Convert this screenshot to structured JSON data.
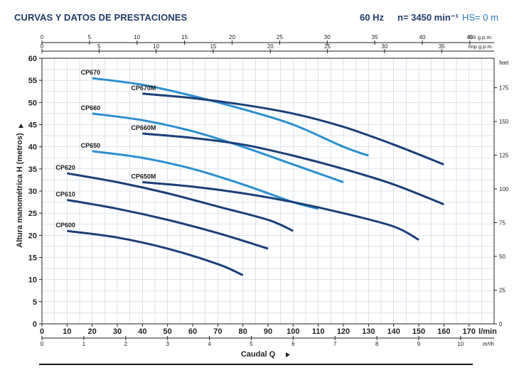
{
  "header": {
    "title": "CURVAS Y DATOS DE PRESTACIONES",
    "frequency": "60 Hz",
    "speed": "n= 3450 min⁻¹",
    "suction": "HS= 0 m"
  },
  "colors": {
    "dark_curve": "#1b3f78",
    "light_curve": "#2b8fd0",
    "grid": "#c9d3df",
    "axis": "#222222"
  },
  "chart_data": {
    "type": "line",
    "xlabel": "Caudal Q",
    "ylabel": "Altura manométrica H (metros)",
    "xlim": [
      0,
      180
    ],
    "ylim": [
      0,
      60
    ],
    "grid": true,
    "x_unit_label": "l/min",
    "y_right_unit_label": "feet",
    "top_axis_1_unit": "US g.p.m.",
    "top_axis_2_unit": "Imp g.p.m.",
    "bottom_axis_2_unit": "m³/h",
    "x_ticks": [
      0,
      10,
      20,
      30,
      40,
      50,
      60,
      70,
      80,
      90,
      100,
      110,
      120,
      130,
      140,
      150,
      160,
      170
    ],
    "y_ticks": [
      0,
      5,
      10,
      15,
      20,
      25,
      30,
      35,
      40,
      45,
      50,
      55,
      60
    ],
    "feet_ticks": [
      0,
      25,
      50,
      75,
      100,
      125,
      150,
      175
    ],
    "us_gpm_ticks": [
      0,
      5,
      10,
      15,
      20,
      25,
      30,
      35,
      40,
      45
    ],
    "imp_gpm_ticks": [
      0,
      5,
      10,
      15,
      20,
      25,
      30,
      35
    ],
    "m3h_ticks": [
      0,
      1,
      2,
      3,
      4,
      5,
      6,
      7,
      8,
      9,
      10
    ],
    "series": [
      {
        "name": "CP670",
        "shade": "light",
        "x": [
          20,
          40,
          60,
          80,
          100,
          120,
          130
        ],
        "y": [
          55.5,
          54,
          51.5,
          48.5,
          45,
          40,
          38
        ]
      },
      {
        "name": "CP670M",
        "shade": "dark",
        "x": [
          40,
          60,
          80,
          100,
          120,
          140,
          160
        ],
        "y": [
          52,
          51,
          49.5,
          47.5,
          44.5,
          40.5,
          36
        ]
      },
      {
        "name": "CP660",
        "shade": "light",
        "x": [
          20,
          40,
          60,
          80,
          100,
          120
        ],
        "y": [
          47.5,
          46,
          43.5,
          40,
          36,
          32
        ]
      },
      {
        "name": "CP660M",
        "shade": "dark",
        "x": [
          40,
          60,
          80,
          100,
          120,
          140,
          160
        ],
        "y": [
          43,
          42,
          40.5,
          38,
          35,
          31.5,
          27
        ]
      },
      {
        "name": "CP650",
        "shade": "light",
        "x": [
          20,
          40,
          60,
          80,
          100,
          110
        ],
        "y": [
          39,
          37.5,
          35,
          31.5,
          27.5,
          26
        ]
      },
      {
        "name": "CP650M",
        "shade": "dark",
        "x": [
          40,
          60,
          80,
          100,
          120,
          140,
          150
        ],
        "y": [
          32,
          31,
          29.5,
          27.5,
          25,
          22,
          19
        ]
      },
      {
        "name": "CP620",
        "shade": "dark",
        "x": [
          10,
          30,
          50,
          70,
          90,
          100
        ],
        "y": [
          34,
          32,
          29.5,
          26.5,
          23.5,
          21
        ]
      },
      {
        "name": "CP610",
        "shade": "dark",
        "x": [
          10,
          30,
          50,
          70,
          90
        ],
        "y": [
          28,
          26,
          23.5,
          20.5,
          17
        ]
      },
      {
        "name": "CP600",
        "shade": "dark",
        "x": [
          10,
          30,
          50,
          70,
          80
        ],
        "y": [
          21,
          19.5,
          17,
          13.5,
          11
        ]
      }
    ]
  }
}
